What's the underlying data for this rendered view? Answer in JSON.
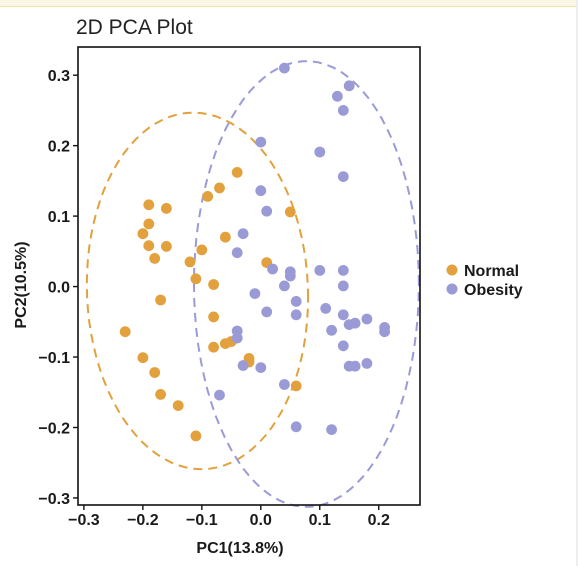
{
  "chart_data": {
    "type": "scatter",
    "title": "2D PCA Plot",
    "xlabel": "PC1(13.8%)",
    "ylabel": "PC2(10.5%)",
    "xlim": [
      -0.31,
      0.27
    ],
    "ylim": [
      -0.31,
      0.34
    ],
    "x_ticks": [
      -0.3,
      -0.2,
      -0.1,
      0.0,
      0.1,
      0.2
    ],
    "x_tick_labels": [
      "−0.3",
      "−0.2",
      "−0.1",
      "0.0",
      "0.1",
      "0.2"
    ],
    "y_ticks": [
      -0.3,
      -0.2,
      -0.1,
      0.0,
      0.1,
      0.2,
      0.3
    ],
    "y_tick_labels": [
      "−0.3",
      "−0.2",
      "−0.1",
      "0.0",
      "0.1",
      "0.2",
      "0.3"
    ],
    "grid": false,
    "legend_position": "right",
    "series": [
      {
        "name": "Normal",
        "color": "#e2a13d",
        "points": [
          [
            -0.23,
            -0.064
          ],
          [
            -0.2,
            -0.101
          ],
          [
            -0.18,
            -0.122
          ],
          [
            -0.17,
            -0.153
          ],
          [
            -0.14,
            -0.169
          ],
          [
            -0.11,
            -0.212
          ],
          [
            -0.19,
            0.116
          ],
          [
            -0.19,
            0.089
          ],
          [
            -0.2,
            0.075
          ],
          [
            -0.19,
            0.058
          ],
          [
            -0.18,
            0.04
          ],
          [
            -0.16,
            0.111
          ],
          [
            -0.16,
            0.057
          ],
          [
            -0.17,
            -0.019
          ],
          [
            -0.12,
            0.035
          ],
          [
            -0.11,
            0.011
          ],
          [
            -0.1,
            0.052
          ],
          [
            -0.08,
            0.003
          ],
          [
            -0.06,
            0.07
          ],
          [
            -0.08,
            -0.043
          ],
          [
            -0.09,
            0.128
          ],
          [
            -0.07,
            0.14
          ],
          [
            -0.04,
            0.162
          ],
          [
            -0.08,
            -0.086
          ],
          [
            -0.06,
            -0.081
          ],
          [
            -0.05,
            -0.078
          ],
          [
            -0.02,
            -0.102
          ],
          [
            -0.02,
            -0.107
          ],
          [
            0.01,
            0.034
          ],
          [
            0.05,
            0.106
          ],
          [
            0.06,
            -0.141
          ]
        ]
      },
      {
        "name": "Obesity",
        "color": "#9a9bd6",
        "points": [
          [
            0.04,
            0.31
          ],
          [
            0.13,
            0.27
          ],
          [
            0.15,
            0.285
          ],
          [
            0.14,
            0.25
          ],
          [
            0.0,
            0.205
          ],
          [
            0.1,
            0.191
          ],
          [
            0.14,
            0.156
          ],
          [
            0.0,
            0.136
          ],
          [
            0.01,
            0.107
          ],
          [
            -0.03,
            0.075
          ],
          [
            -0.04,
            0.048
          ],
          [
            -0.01,
            -0.01
          ],
          [
            0.02,
            0.025
          ],
          [
            0.04,
            0.001
          ],
          [
            0.05,
            0.021
          ],
          [
            0.05,
            0.015
          ],
          [
            0.1,
            0.023
          ],
          [
            0.14,
            0.023
          ],
          [
            0.14,
            0.001
          ],
          [
            0.06,
            -0.04
          ],
          [
            0.06,
            -0.021
          ],
          [
            0.11,
            -0.031
          ],
          [
            0.12,
            -0.062
          ],
          [
            0.14,
            -0.04
          ],
          [
            0.15,
            -0.054
          ],
          [
            0.16,
            -0.052
          ],
          [
            0.18,
            -0.046
          ],
          [
            0.21,
            -0.058
          ],
          [
            0.21,
            -0.064
          ],
          [
            -0.04,
            -0.063
          ],
          [
            -0.04,
            -0.073
          ],
          [
            0.01,
            -0.036
          ],
          [
            0.14,
            -0.084
          ],
          [
            0.15,
            -0.113
          ],
          [
            0.16,
            -0.113
          ],
          [
            0.18,
            -0.109
          ],
          [
            -0.03,
            -0.112
          ],
          [
            0.0,
            -0.115
          ],
          [
            0.04,
            -0.139
          ],
          [
            -0.07,
            -0.154
          ],
          [
            0.06,
            -0.199
          ],
          [
            0.12,
            -0.203
          ]
        ]
      }
    ]
  }
}
